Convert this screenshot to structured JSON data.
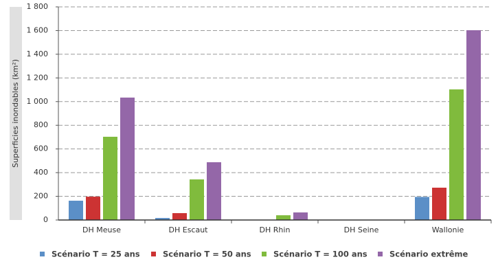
{
  "chart_data": {
    "type": "bar",
    "y_label": "Superficies inondables (km²)",
    "categories": [
      "DH Meuse",
      "DH Escaut",
      "DH Rhin",
      "DH Seine",
      "Wallonie"
    ],
    "series": [
      {
        "name": "Scénario T = 25 ans",
        "color": "#5b8fc7",
        "values": [
          163,
          17,
          1,
          0,
          195
        ]
      },
      {
        "name": "Scénario T = 50 ans",
        "color": "#cc3333",
        "values": [
          197,
          58,
          2,
          0,
          273
        ]
      },
      {
        "name": "Scénario T = 100 ans",
        "color": "#80bb3d",
        "values": [
          703,
          343,
          40,
          1,
          1103
        ]
      },
      {
        "name": "Scénario extrême",
        "color": "#9467a8",
        "values": [
          1034,
          488,
          64,
          2,
          1603
        ]
      }
    ],
    "ylim": [
      0,
      1800
    ],
    "yticks": [
      0,
      200,
      400,
      600,
      800,
      {
        "value": 1000,
        "label": "1 000"
      },
      {
        "value": 1200,
        "label": "1 200"
      },
      {
        "value": 1400,
        "label": "1 400"
      },
      {
        "value": 1600,
        "label": "1 600"
      },
      {
        "value": 1800,
        "label": "1 800"
      }
    ],
    "grid": true
  }
}
